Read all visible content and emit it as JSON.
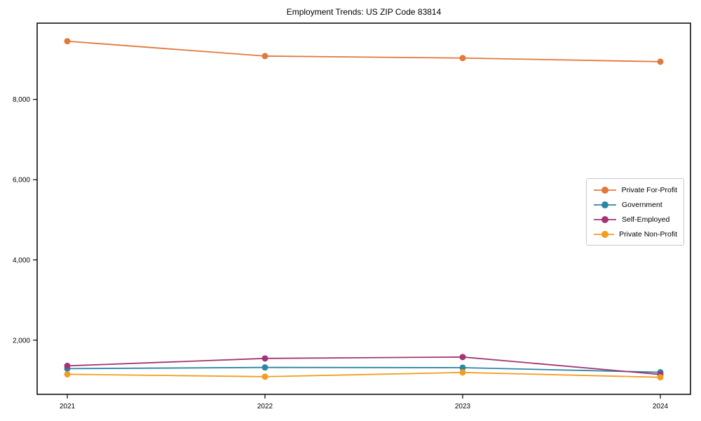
{
  "window": {
    "background_color": "#ffffff"
  },
  "chart_data": {
    "type": "line",
    "title": "Employment Trends: US ZIP Code 83814",
    "xlabel": "",
    "ylabel": "",
    "categories": [
      "2021",
      "2022",
      "2023",
      "2024"
    ],
    "series": [
      {
        "name": "Private For-Profit",
        "color": "#e2783c",
        "values": [
          9450,
          9080,
          9030,
          8940
        ]
      },
      {
        "name": "Government",
        "color": "#2e86a5",
        "values": [
          1290,
          1320,
          1315,
          1200
        ]
      },
      {
        "name": "Self-Employed",
        "color": "#a23573",
        "values": [
          1360,
          1545,
          1580,
          1145
        ]
      },
      {
        "name": "Private Non-Profit",
        "color": "#f39d20",
        "values": [
          1150,
          1090,
          1195,
          1075
        ]
      }
    ],
    "ylim": [
      650,
      9900
    ],
    "yticks": [
      2000,
      4000,
      6000,
      8000
    ],
    "ytick_labels": [
      "2,000",
      "4,000",
      "6,000",
      "8,000"
    ],
    "grid": false,
    "legend_position": "center-right",
    "marker": "circle",
    "axis_color": "#000000"
  }
}
